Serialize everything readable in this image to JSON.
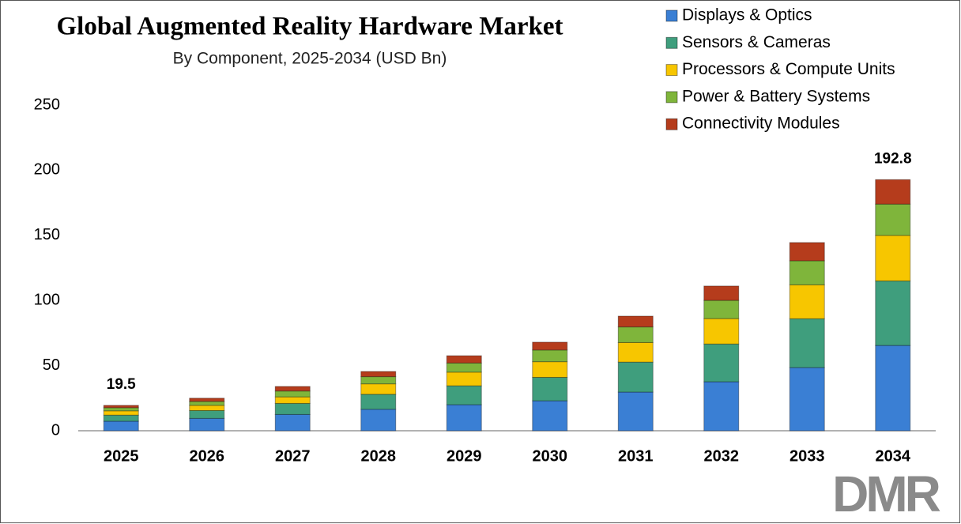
{
  "chart_data": {
    "type": "stacked-bar",
    "title": "Global Augmented Reality Hardware Market",
    "subtitle": "By Component, 2025-2034 (USD Bn)",
    "categories": [
      "2025",
      "2026",
      "2027",
      "2028",
      "2029",
      "2030",
      "2031",
      "2032",
      "2033",
      "2034"
    ],
    "series": [
      {
        "name": "Displays & Optics",
        "color": "#3a7fd4",
        "values": [
          7.3,
          9.5,
          12.5,
          16.5,
          20,
          23,
          29.7,
          37.6,
          48.5,
          65.5
        ]
      },
      {
        "name": "Sensors & Cameras",
        "color": "#3f9e7d",
        "values": [
          4.7,
          6,
          8.5,
          11.5,
          14.5,
          18,
          23,
          29,
          37.5,
          49.5
        ]
      },
      {
        "name": "Processors & Compute Units",
        "color": "#f7c600",
        "values": [
          3.3,
          4,
          5,
          8,
          10.5,
          12,
          15,
          19.5,
          26,
          35
        ]
      },
      {
        "name": "Power & Battery Systems",
        "color": "#7fb53b",
        "values": [
          2.4,
          3,
          4.5,
          5.5,
          7,
          9,
          12,
          14,
          18.5,
          24
        ]
      },
      {
        "name": "Connectivity Modules",
        "color": "#b53c1c",
        "values": [
          1.8,
          2.5,
          3.5,
          4,
          5.6,
          6,
          8.3,
          11,
          14,
          18.8
        ]
      }
    ],
    "totals": [
      19.5,
      null,
      null,
      null,
      null,
      null,
      null,
      null,
      null,
      192.8
    ],
    "ylim": [
      0,
      250
    ],
    "yticks": [
      0,
      50,
      100,
      150,
      200,
      250
    ],
    "grid": false,
    "legend": "top-right",
    "logo": "DMR"
  }
}
